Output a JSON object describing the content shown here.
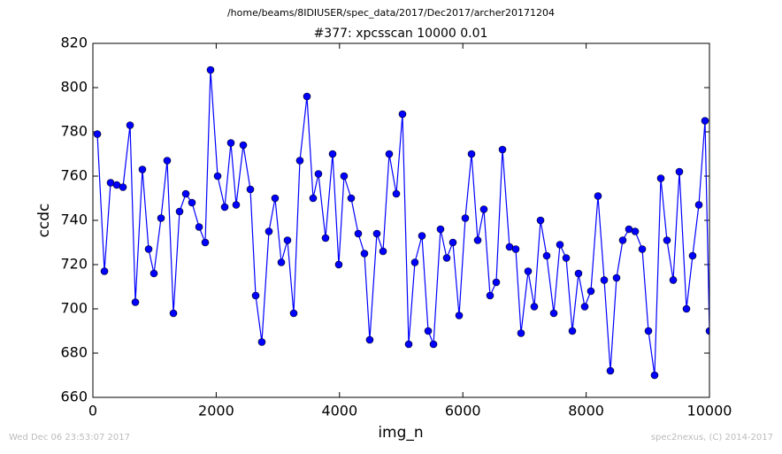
{
  "chart_data": {
    "type": "line",
    "suptitle": "/home/beams/8IDIUSER/spec_data/2017/Dec2017/archer20171204",
    "title": "#377: xpcsscan 10000 0.01",
    "xlabel": "img_n",
    "ylabel": "ccdc",
    "footer_left": "Wed Dec 06 23:53:07 2017",
    "footer_right": "spec2nexus, (C) 2014-2017",
    "xlim": [
      0,
      10000
    ],
    "xticks": [
      0,
      2000,
      4000,
      6000,
      8000,
      10000
    ],
    "ylim": [
      660,
      820
    ],
    "yticks": [
      660,
      680,
      700,
      720,
      740,
      760,
      780,
      800,
      820
    ],
    "color": "#0000ff",
    "x": [
      72,
      187,
      287,
      387,
      488,
      603,
      689,
      803,
      904,
      990,
      1105,
      1205,
      1306,
      1406,
      1507,
      1607,
      1722,
      1822,
      1908,
      2023,
      2138,
      2238,
      2324,
      2439,
      2554,
      2640,
      2740,
      2855,
      2955,
      3056,
      3156,
      3257,
      3357,
      3472,
      3572,
      3658,
      3773,
      3888,
      3988,
      4074,
      4189,
      4304,
      4404,
      4490,
      4605,
      4706,
      4806,
      4921,
      5021,
      5122,
      5222,
      5337,
      5438,
      5524,
      5638,
      5739,
      5839,
      5940,
      6040,
      6141,
      6241,
      6341,
      6442,
      6542,
      6643,
      6757,
      6858,
      6944,
      7059,
      7159,
      7260,
      7360,
      7475,
      7575,
      7676,
      7776,
      7876,
      7977,
      8077,
      8192,
      8293,
      8393,
      8493,
      8594,
      8694,
      8795,
      8910,
      9010,
      9110,
      9211,
      9311,
      9412,
      9512,
      9627,
      9727,
      9828,
      9928,
      10000
    ],
    "values": [
      779,
      717,
      757,
      756,
      755,
      783,
      703,
      763,
      727,
      716,
      741,
      767,
      698,
      744,
      752,
      748,
      737,
      730,
      808,
      760,
      746,
      775,
      747,
      774,
      754,
      706,
      685,
      735,
      750,
      721,
      731,
      698,
      767,
      796,
      750,
      761,
      732,
      770,
      720,
      760,
      750,
      734,
      725,
      686,
      734,
      726,
      770,
      752,
      788,
      684,
      721,
      733,
      690,
      684,
      736,
      723,
      730,
      697,
      741,
      770,
      731,
      745,
      706,
      712,
      772,
      728,
      727,
      689,
      717,
      701,
      740,
      724,
      698,
      729,
      723,
      690,
      716,
      701,
      708,
      751,
      713,
      672,
      714,
      731,
      736,
      735,
      727,
      690,
      670,
      759,
      731,
      713,
      762,
      700,
      724,
      747,
      785,
      690
    ]
  }
}
